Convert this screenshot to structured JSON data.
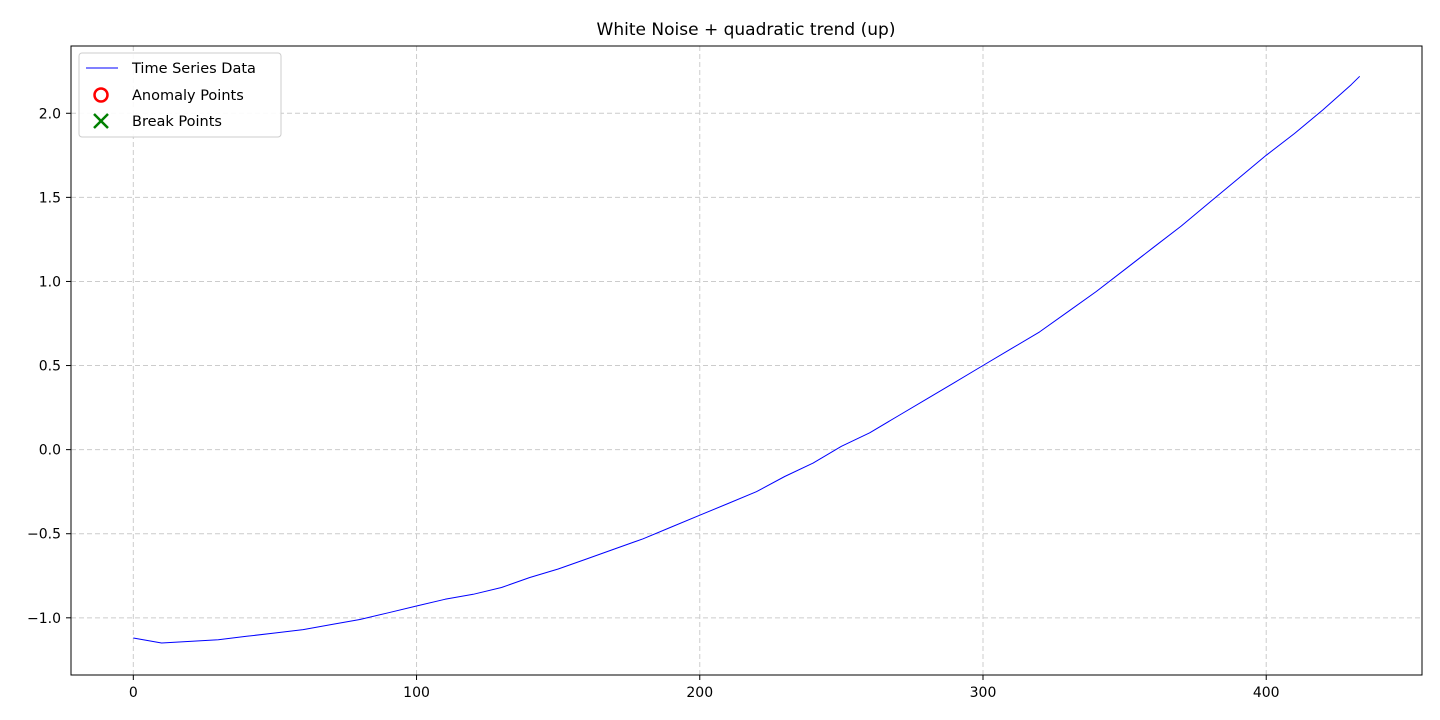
{
  "chart_data": {
    "type": "line",
    "title": "White Noise + quadratic trend (up)",
    "xlabel": "",
    "ylabel": "",
    "xlim": [
      -22,
      455
    ],
    "ylim": [
      -1.34,
      2.4
    ],
    "xticks": [
      0,
      100,
      200,
      300,
      400
    ],
    "yticks": [
      -1.0,
      -0.5,
      0.0,
      0.5,
      1.0,
      1.5,
      2.0
    ],
    "ytick_labels": [
      "−1.0",
      "−0.5",
      "0.0",
      "0.5",
      "1.0",
      "1.5",
      "2.0"
    ],
    "grid": true,
    "legend_position": "top-left",
    "legend": [
      "Time Series Data",
      "Anomaly Points",
      "Break Points"
    ],
    "series": [
      {
        "name": "Time Series Data",
        "color": "#0000ff",
        "x": [
          0,
          10,
          20,
          30,
          40,
          50,
          60,
          70,
          80,
          90,
          100,
          110,
          120,
          130,
          140,
          150,
          160,
          170,
          180,
          190,
          200,
          210,
          220,
          230,
          240,
          250,
          260,
          270,
          280,
          290,
          300,
          310,
          320,
          330,
          340,
          350,
          360,
          370,
          380,
          390,
          400,
          410,
          420,
          430,
          433
        ],
        "values": [
          -1.12,
          -1.15,
          -1.14,
          -1.13,
          -1.11,
          -1.09,
          -1.07,
          -1.04,
          -1.01,
          -0.97,
          -0.93,
          -0.89,
          -0.86,
          -0.82,
          -0.76,
          -0.71,
          -0.65,
          -0.59,
          -0.53,
          -0.46,
          -0.39,
          -0.32,
          -0.25,
          -0.16,
          -0.08,
          0.02,
          0.1,
          0.2,
          0.3,
          0.4,
          0.5,
          0.6,
          0.7,
          0.82,
          0.94,
          1.07,
          1.2,
          1.33,
          1.47,
          1.61,
          1.75,
          1.88,
          2.02,
          2.17,
          2.22
        ]
      }
    ],
    "anomaly_points": {
      "name": "Anomaly Points",
      "color": "#ff0000",
      "x": [],
      "values": []
    },
    "break_points": {
      "name": "Break Points",
      "color": "#008000",
      "x": [],
      "values": []
    }
  }
}
